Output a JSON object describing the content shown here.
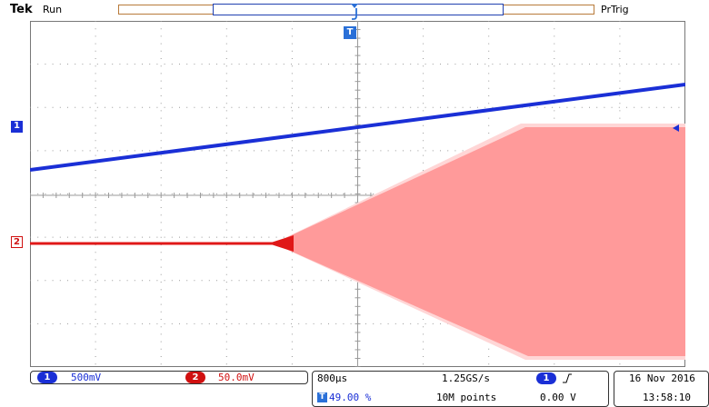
{
  "header": {
    "brand": "Tek",
    "acq_state": "Run",
    "trigger_mode": "PrTrig"
  },
  "markers": {
    "ch1": "1",
    "ch2": "2",
    "trigger": "T"
  },
  "channels": [
    {
      "number": "1",
      "scale": "500mV",
      "color": "#1a2fd6"
    },
    {
      "number": "2",
      "scale": "50.0mV",
      "color": "#e01818"
    }
  ],
  "timebase": {
    "scale": "800µs",
    "sample_rate": "1.25GS/s",
    "trigger_position": "49.00 %",
    "record_length": "10M points",
    "trigger_source": "1",
    "trigger_slope_icon": "rising-edge-icon",
    "trigger_level": "0.00 V"
  },
  "datetime": {
    "date": "16 Nov 2016",
    "time": "13:58:10"
  },
  "colors": {
    "ch1": "#1a2fd6",
    "ch2": "#e01818",
    "ch2_envelope": "#ff9a9a",
    "grid": "#9a9a9a",
    "record_bar": "#b87a3a"
  }
}
